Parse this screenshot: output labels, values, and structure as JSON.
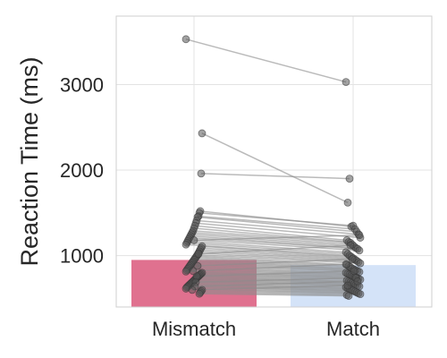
{
  "chart_data": {
    "type": "bar",
    "title": "",
    "xlabel": "",
    "ylabel": "Reaction Time (ms)",
    "categories": [
      "Mismatch",
      "Match"
    ],
    "values": [
      950,
      890
    ],
    "ylim": [
      400,
      3800
    ],
    "yticks": [
      1000,
      2000,
      3000
    ],
    "grid": true,
    "bar_colors": [
      "#e0718f",
      "#d4e3f8"
    ],
    "point_color": "#555555",
    "line_color": "#8c8c8c",
    "paired_points": [
      [
        3530,
        3030
      ],
      [
        2430,
        1620
      ],
      [
        1960,
        1900
      ],
      [
        1520,
        1340
      ],
      [
        1500,
        1350
      ],
      [
        1460,
        1310
      ],
      [
        1450,
        1280
      ],
      [
        1410,
        1250
      ],
      [
        1380,
        1210
      ],
      [
        1350,
        1180
      ],
      [
        1320,
        1160
      ],
      [
        1290,
        1150
      ],
      [
        1270,
        1130
      ],
      [
        1250,
        1110
      ],
      [
        1230,
        1090
      ],
      [
        1210,
        1080
      ],
      [
        1190,
        1060
      ],
      [
        1170,
        1040
      ],
      [
        1150,
        1020
      ],
      [
        1130,
        1000
      ],
      [
        1110,
        985
      ],
      [
        1090,
        970
      ],
      [
        1070,
        955
      ],
      [
        1050,
        940
      ],
      [
        1030,
        925
      ],
      [
        1010,
        910
      ],
      [
        995,
        895
      ],
      [
        980,
        880
      ],
      [
        965,
        865
      ],
      [
        950,
        850
      ],
      [
        935,
        840
      ],
      [
        920,
        830
      ],
      [
        905,
        820
      ],
      [
        890,
        810
      ],
      [
        875,
        800
      ],
      [
        860,
        790
      ],
      [
        845,
        780
      ],
      [
        830,
        770
      ],
      [
        815,
        760
      ],
      [
        800,
        750
      ],
      [
        790,
        740
      ],
      [
        780,
        730
      ],
      [
        770,
        720
      ],
      [
        760,
        710
      ],
      [
        750,
        700
      ],
      [
        740,
        690
      ],
      [
        730,
        680
      ],
      [
        720,
        670
      ],
      [
        710,
        660
      ],
      [
        700,
        650
      ],
      [
        690,
        640
      ],
      [
        680,
        630
      ],
      [
        670,
        620
      ],
      [
        660,
        610
      ],
      [
        650,
        600
      ],
      [
        640,
        590
      ],
      [
        630,
        580
      ],
      [
        615,
        570
      ],
      [
        600,
        560
      ],
      [
        585,
        550
      ],
      [
        570,
        540
      ],
      [
        555,
        530
      ],
      [
        1020,
        1120
      ],
      [
        880,
        960
      ],
      [
        760,
        820
      ],
      [
        690,
        740
      ],
      [
        640,
        700
      ],
      [
        1180,
        1240
      ],
      [
        820,
        900
      ],
      [
        600,
        650
      ]
    ]
  }
}
